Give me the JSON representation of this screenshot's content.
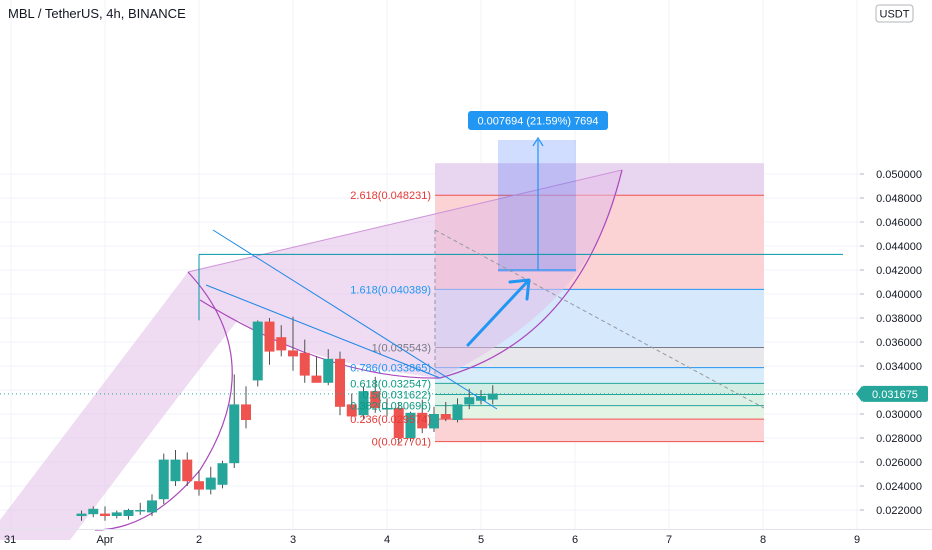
{
  "header": {
    "title": "MBL / TetherUS, 4h, BINANCE",
    "currency": "USDT"
  },
  "price_tag": "0.031675",
  "measure_label": "0.007694 (21.59%) 7694",
  "colors": {
    "up": "#26a69a",
    "down": "#ef5350",
    "wick": "#505050",
    "fib_blue_text": "#2196f3",
    "fib_red_text": "#e53935",
    "fib_green_text": "#089981",
    "purple_fill": "#e1bee7",
    "measure_box": "#2962ff",
    "price_tag_bg": "#26a69a",
    "hline": "#0097a7"
  },
  "chart_data": {
    "type": "candlestick",
    "x_tick_labels": [
      "31",
      "Apr",
      "2",
      "3",
      "4",
      "5",
      "6",
      "7",
      "8",
      "9"
    ],
    "y_tick_labels": [
      "0.022000",
      "0.024000",
      "0.026000",
      "0.028000",
      "0.030000",
      "0.032000",
      "0.034000",
      "0.036000",
      "0.038000",
      "0.040000",
      "0.042000",
      "0.044000",
      "0.046000",
      "0.048000",
      "0.050000"
    ],
    "ylim": [
      0.0205,
      0.0509
    ],
    "last_price": 0.031675,
    "candles": [
      {
        "t": -0.25,
        "o": 0.0215,
        "h": 0.02195,
        "l": 0.0211,
        "c": 0.0217
      },
      {
        "t": -0.125,
        "o": 0.02165,
        "h": 0.0223,
        "l": 0.0214,
        "c": 0.0221
      },
      {
        "t": -0.0,
        "o": 0.0217,
        "h": 0.0223,
        "l": 0.0211,
        "c": 0.0215
      },
      {
        "t": 0.125,
        "o": 0.0215,
        "h": 0.02195,
        "l": 0.0213,
        "c": 0.0218
      },
      {
        "t": 0.25,
        "o": 0.0215,
        "h": 0.0221,
        "l": 0.0212,
        "c": 0.022
      },
      {
        "t": 0.375,
        "o": 0.0219,
        "h": 0.0226,
        "l": 0.0216,
        "c": 0.022
      },
      {
        "t": 0.5,
        "o": 0.0218,
        "h": 0.0233,
        "l": 0.0215,
        "c": 0.0228
      },
      {
        "t": 0.625,
        "o": 0.0229,
        "h": 0.0267,
        "l": 0.0225,
        "c": 0.0262
      },
      {
        "t": 0.75,
        "o": 0.0244,
        "h": 0.027,
        "l": 0.024,
        "c": 0.0262
      },
      {
        "t": 0.875,
        "o": 0.0262,
        "h": 0.0268,
        "l": 0.024,
        "c": 0.0244
      },
      {
        "t": 1.0,
        "o": 0.0244,
        "h": 0.0253,
        "l": 0.0232,
        "c": 0.0237
      },
      {
        "t": 1.125,
        "o": 0.0237,
        "h": 0.0256,
        "l": 0.0233,
        "c": 0.0247
      },
      {
        "t": 1.25,
        "o": 0.0241,
        "h": 0.0261,
        "l": 0.0238,
        "c": 0.0259
      },
      {
        "t": 1.375,
        "o": 0.0259,
        "h": 0.0333,
        "l": 0.0255,
        "c": 0.0308
      },
      {
        "t": 1.5,
        "o": 0.0308,
        "h": 0.0323,
        "l": 0.0288,
        "c": 0.0295
      },
      {
        "t": 1.625,
        "o": 0.0328,
        "h": 0.0378,
        "l": 0.0323,
        "c": 0.0377
      },
      {
        "t": 1.75,
        "o": 0.0377,
        "h": 0.038,
        "l": 0.0341,
        "c": 0.0352
      },
      {
        "t": 1.875,
        "o": 0.0364,
        "h": 0.0374,
        "l": 0.0348,
        "c": 0.0353
      },
      {
        "t": 2.0,
        "o": 0.0353,
        "h": 0.0381,
        "l": 0.0336,
        "c": 0.0348
      },
      {
        "t": 2.125,
        "o": 0.0351,
        "h": 0.0362,
        "l": 0.0326,
        "c": 0.0332
      },
      {
        "t": 2.25,
        "o": 0.0332,
        "h": 0.0348,
        "l": 0.0328,
        "c": 0.0326
      },
      {
        "t": 2.375,
        "o": 0.0326,
        "h": 0.0354,
        "l": 0.0324,
        "c": 0.0346
      },
      {
        "t": 2.5,
        "o": 0.0346,
        "h": 0.0352,
        "l": 0.0299,
        "c": 0.0306
      },
      {
        "t": 2.625,
        "o": 0.0308,
        "h": 0.0317,
        "l": 0.0298,
        "c": 0.0298
      },
      {
        "t": 2.75,
        "o": 0.0299,
        "h": 0.0323,
        "l": 0.0296,
        "c": 0.0319
      },
      {
        "t": 2.875,
        "o": 0.0319,
        "h": 0.0331,
        "l": 0.0301,
        "c": 0.0305
      },
      {
        "t": 3.0,
        "o": 0.0305,
        "h": 0.0313,
        "l": 0.0298,
        "c": 0.0305
      },
      {
        "t": 3.125,
        "o": 0.0305,
        "h": 0.031,
        "l": 0.0275,
        "c": 0.028
      },
      {
        "t": 3.25,
        "o": 0.028,
        "h": 0.0302,
        "l": 0.0277,
        "c": 0.0301
      },
      {
        "t": 3.375,
        "o": 0.0301,
        "h": 0.0312,
        "l": 0.0284,
        "c": 0.0288
      },
      {
        "t": 3.5,
        "o": 0.0288,
        "h": 0.0306,
        "l": 0.0285,
        "c": 0.03
      },
      {
        "t": 3.625,
        "o": 0.03,
        "h": 0.031,
        "l": 0.0294,
        "c": 0.0296
      },
      {
        "t": 3.75,
        "o": 0.0295,
        "h": 0.0313,
        "l": 0.0293,
        "c": 0.0308
      },
      {
        "t": 3.875,
        "o": 0.0308,
        "h": 0.0321,
        "l": 0.0304,
        "c": 0.0314
      },
      {
        "t": 4.0,
        "o": 0.0311,
        "h": 0.032,
        "l": 0.0308,
        "c": 0.0315
      },
      {
        "t": 4.125,
        "o": 0.0312,
        "h": 0.0324,
        "l": 0.0308,
        "c": 0.0317
      }
    ],
    "fib_levels": [
      {
        "label": "0(0.027701)",
        "value": 0.027701,
        "kind": "red"
      },
      {
        "label": "0.236(0.029574)",
        "value": 0.029574,
        "kind": "red"
      },
      {
        "label": "0.382(0.030696)",
        "value": 0.030696,
        "kind": "green"
      },
      {
        "label": "0.5(0.031622)",
        "value": 0.031622,
        "kind": "green"
      },
      {
        "label": "0.618(0.032547)",
        "value": 0.032547,
        "kind": "green"
      },
      {
        "label": "0.786(0.033865)",
        "value": 0.033865,
        "kind": "blue"
      },
      {
        "label": "1(0.035543)",
        "value": 0.035543,
        "kind": "grey"
      },
      {
        "label": "1.618(0.040389)",
        "value": 0.040389,
        "kind": "blue"
      },
      {
        "label": "2.618(0.048231)",
        "value": 0.048231,
        "kind": "red"
      }
    ],
    "annotations": {
      "horizontal_line_value": 0.0433,
      "measure_value": 0.007694,
      "measure_percent": 21.59,
      "measure_ticks": 7694
    }
  }
}
